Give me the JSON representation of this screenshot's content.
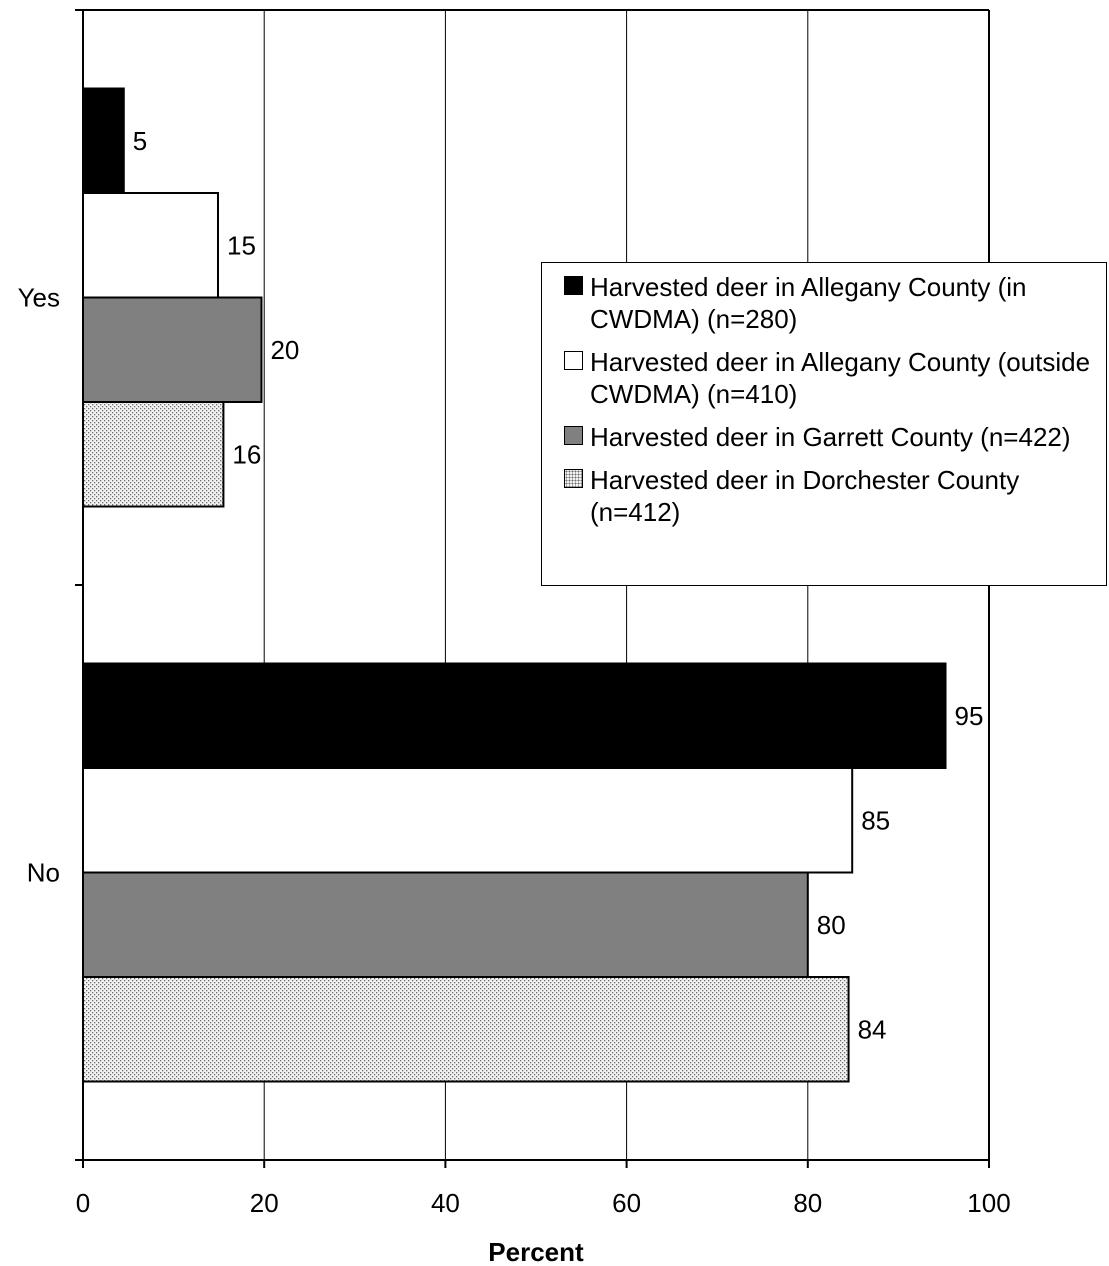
{
  "chart_data": {
    "type": "bar",
    "orientation": "horizontal",
    "categories": [
      "Yes",
      "No"
    ],
    "series": [
      {
        "name": "Harvested deer in Allegany County (in CWDMA) (n=280)",
        "values": [
          5,
          95
        ],
        "color": "#000000",
        "pattern": "solid"
      },
      {
        "name": "Harvested deer in Allegany County (outside CWDMA) (n=410)",
        "values": [
          15,
          85
        ],
        "color": "#ffffff",
        "pattern": "solid"
      },
      {
        "name": "Harvested deer in Garrett County (n=422)",
        "values": [
          20,
          80
        ],
        "color": "#808080",
        "pattern": "solid"
      },
      {
        "name": "Harvested deer in Dorchester County (n=412)",
        "values": [
          16,
          84
        ],
        "color": "#e6e6e6",
        "pattern": "dots"
      }
    ],
    "bar_extents": [
      [
        4.5,
        95.2
      ],
      [
        14.9,
        84.9
      ],
      [
        19.7,
        80.0
      ],
      [
        15.5,
        84.5
      ]
    ],
    "xlabel": "Percent",
    "ylabel": "",
    "xlim": [
      0,
      100
    ],
    "xticks": [
      0,
      20,
      40,
      60,
      80,
      100
    ],
    "grid": "vertical",
    "legend_position": "right"
  }
}
